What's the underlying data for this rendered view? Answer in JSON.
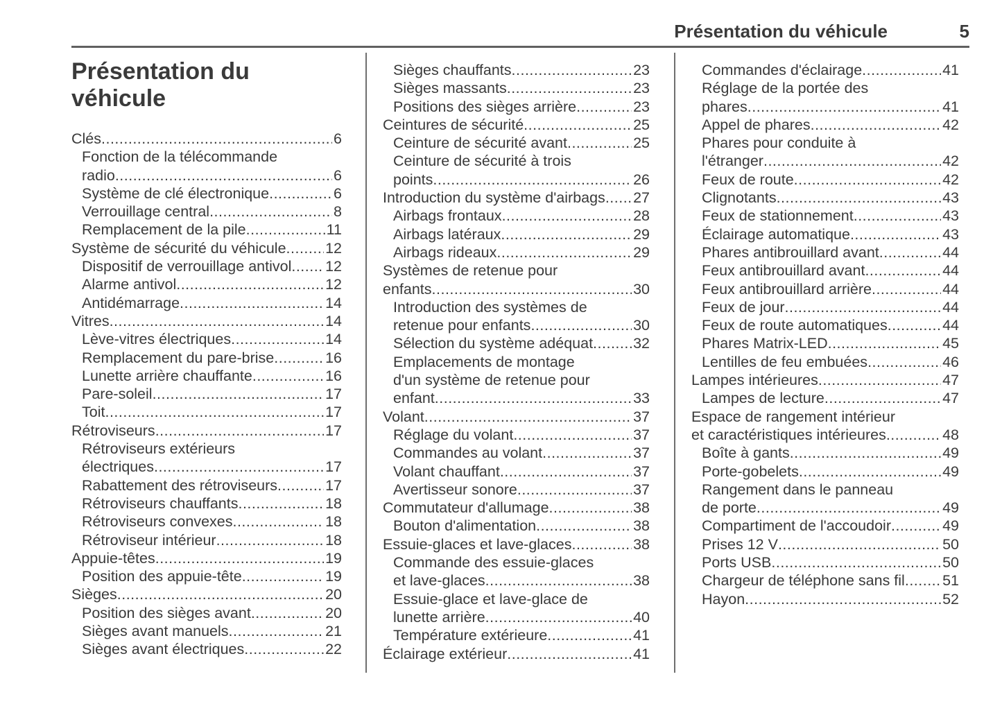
{
  "header": {
    "title": "Présentation du véhicule",
    "page_number": "5"
  },
  "document_title": "Présentation du véhicule",
  "colors": {
    "text": "#3a3a3a",
    "rule": "#606060"
  },
  "columns": [
    {
      "entries": [
        {
          "level": 1,
          "lines": [
            "Clés"
          ],
          "page": "6"
        },
        {
          "level": 2,
          "lines": [
            "Fonction de la télécommande",
            "radio"
          ],
          "page": "6"
        },
        {
          "level": 2,
          "lines": [
            "Système de clé électronique"
          ],
          "page": "6"
        },
        {
          "level": 2,
          "lines": [
            "Verrouillage central"
          ],
          "page": "8"
        },
        {
          "level": 2,
          "lines": [
            "Remplacement de la pile"
          ],
          "page": "11"
        },
        {
          "level": 1,
          "lines": [
            "Système de sécurité du véhicule"
          ],
          "page": "12"
        },
        {
          "level": 2,
          "lines": [
            "Dispositif de verrouillage antivol"
          ],
          "page": "12"
        },
        {
          "level": 2,
          "lines": [
            "Alarme antivol"
          ],
          "page": "12"
        },
        {
          "level": 2,
          "lines": [
            "Antidémarrage"
          ],
          "page": "14"
        },
        {
          "level": 1,
          "lines": [
            "Vitres"
          ],
          "page": "14"
        },
        {
          "level": 2,
          "lines": [
            "Lève-vitres électriques"
          ],
          "page": "14"
        },
        {
          "level": 2,
          "lines": [
            "Remplacement du pare-brise"
          ],
          "page": "16"
        },
        {
          "level": 2,
          "lines": [
            "Lunette arrière chauffante"
          ],
          "page": "16"
        },
        {
          "level": 2,
          "lines": [
            "Pare-soleil"
          ],
          "page": "17"
        },
        {
          "level": 2,
          "lines": [
            "Toit"
          ],
          "page": "17"
        },
        {
          "level": 1,
          "lines": [
            "Rétroviseurs"
          ],
          "page": "17"
        },
        {
          "level": 2,
          "lines": [
            "Rétroviseurs extérieurs",
            "électriques"
          ],
          "page": "17"
        },
        {
          "level": 2,
          "lines": [
            "Rabattement des rétroviseurs"
          ],
          "page": "17"
        },
        {
          "level": 2,
          "lines": [
            "Rétroviseurs chauffants"
          ],
          "page": "18"
        },
        {
          "level": 2,
          "lines": [
            "Rétroviseurs convexes"
          ],
          "page": "18"
        },
        {
          "level": 2,
          "lines": [
            "Rétroviseur intérieur"
          ],
          "page": "18"
        },
        {
          "level": 1,
          "lines": [
            "Appuie-têtes"
          ],
          "page": "19"
        },
        {
          "level": 2,
          "lines": [
            "Position des appuie-tête"
          ],
          "page": "19"
        },
        {
          "level": 1,
          "lines": [
            "Sièges"
          ],
          "page": "20"
        },
        {
          "level": 2,
          "lines": [
            "Position des sièges avant"
          ],
          "page": "20"
        },
        {
          "level": 2,
          "lines": [
            "Sièges avant manuels"
          ],
          "page": "21"
        },
        {
          "level": 2,
          "lines": [
            "Sièges avant électriques"
          ],
          "page": "22"
        }
      ]
    },
    {
      "entries": [
        {
          "level": 2,
          "lines": [
            "Sièges chauffants"
          ],
          "page": "23"
        },
        {
          "level": 2,
          "lines": [
            "Sièges massants"
          ],
          "page": "23"
        },
        {
          "level": 2,
          "lines": [
            "Positions des sièges arrière"
          ],
          "page": "23"
        },
        {
          "level": 1,
          "lines": [
            "Ceintures de sécurité"
          ],
          "page": "25"
        },
        {
          "level": 2,
          "lines": [
            "Ceinture de sécurité avant"
          ],
          "page": "25"
        },
        {
          "level": 2,
          "lines": [
            "Ceinture de sécurité à trois",
            "points"
          ],
          "page": "26"
        },
        {
          "level": 1,
          "lines": [
            "Introduction du système d'airbags"
          ],
          "page": "27"
        },
        {
          "level": 2,
          "lines": [
            "Airbags frontaux"
          ],
          "page": "28"
        },
        {
          "level": 2,
          "lines": [
            "Airbags latéraux"
          ],
          "page": "29"
        },
        {
          "level": 2,
          "lines": [
            "Airbags rideaux"
          ],
          "page": "29"
        },
        {
          "level": 1,
          "lines": [
            "Systèmes de retenue pour",
            "enfants"
          ],
          "page": "30"
        },
        {
          "level": 2,
          "lines": [
            "Introduction des systèmes de",
            "retenue pour enfants"
          ],
          "page": "30"
        },
        {
          "level": 2,
          "lines": [
            "Sélection du système adéquat"
          ],
          "page": "32"
        },
        {
          "level": 2,
          "lines": [
            "Emplacements de montage",
            "d'un système de retenue pour",
            "enfant"
          ],
          "page": "33"
        },
        {
          "level": 1,
          "lines": [
            "Volant"
          ],
          "page": "37"
        },
        {
          "level": 2,
          "lines": [
            "Réglage du volant"
          ],
          "page": "37"
        },
        {
          "level": 2,
          "lines": [
            "Commandes au volant"
          ],
          "page": "37"
        },
        {
          "level": 2,
          "lines": [
            "Volant chauffant"
          ],
          "page": "37"
        },
        {
          "level": 2,
          "lines": [
            "Avertisseur sonore"
          ],
          "page": "37"
        },
        {
          "level": 1,
          "lines": [
            "Commutateur d'allumage"
          ],
          "page": "38"
        },
        {
          "level": 2,
          "lines": [
            "Bouton d'alimentation"
          ],
          "page": "38"
        },
        {
          "level": 1,
          "lines": [
            "Essuie-glaces et lave-glaces"
          ],
          "page": "38"
        },
        {
          "level": 2,
          "lines": [
            "Commande des essuie-glaces",
            "et lave-glaces"
          ],
          "page": "38"
        },
        {
          "level": 2,
          "lines": [
            "Essuie-glace et lave-glace de",
            "lunette arrière"
          ],
          "page": "40"
        },
        {
          "level": 2,
          "lines": [
            "Température extérieure"
          ],
          "page": "41"
        },
        {
          "level": 1,
          "lines": [
            "Éclairage extérieur"
          ],
          "page": "41"
        }
      ]
    },
    {
      "entries": [
        {
          "level": 2,
          "lines": [
            "Commandes d'éclairage"
          ],
          "page": "41"
        },
        {
          "level": 2,
          "lines": [
            "Réglage de la portée des",
            "phares"
          ],
          "page": "41"
        },
        {
          "level": 2,
          "lines": [
            "Appel de phares"
          ],
          "page": "42"
        },
        {
          "level": 2,
          "lines": [
            "Phares pour conduite à",
            "l'étranger"
          ],
          "page": "42"
        },
        {
          "level": 2,
          "lines": [
            "Feux de route"
          ],
          "page": "42"
        },
        {
          "level": 2,
          "lines": [
            "Clignotants"
          ],
          "page": "43"
        },
        {
          "level": 2,
          "lines": [
            "Feux de stationnement"
          ],
          "page": "43"
        },
        {
          "level": 2,
          "lines": [
            "Éclairage automatique"
          ],
          "page": "43"
        },
        {
          "level": 2,
          "lines": [
            "Phares antibrouillard avant"
          ],
          "page": "44"
        },
        {
          "level": 2,
          "lines": [
            "Feux antibrouillard avant"
          ],
          "page": "44"
        },
        {
          "level": 2,
          "lines": [
            "Feux antibrouillard arrière"
          ],
          "page": "44"
        },
        {
          "level": 2,
          "lines": [
            "Feux de jour"
          ],
          "page": "44"
        },
        {
          "level": 2,
          "lines": [
            "Feux de route automatiques"
          ],
          "page": "44"
        },
        {
          "level": 2,
          "lines": [
            "Phares Matrix-LED"
          ],
          "page": "45"
        },
        {
          "level": 2,
          "lines": [
            "Lentilles de feu embuées"
          ],
          "page": "46"
        },
        {
          "level": 1,
          "lines": [
            "Lampes intérieures"
          ],
          "page": "47"
        },
        {
          "level": 2,
          "lines": [
            "Lampes de lecture"
          ],
          "page": "47"
        },
        {
          "level": 1,
          "lines": [
            "Espace de rangement intérieur",
            "et caractéristiques intérieures"
          ],
          "page": "48"
        },
        {
          "level": 2,
          "lines": [
            "Boîte à gants"
          ],
          "page": "49"
        },
        {
          "level": 2,
          "lines": [
            "Porte-gobelets"
          ],
          "page": "49"
        },
        {
          "level": 2,
          "lines": [
            "Rangement dans le panneau",
            "de porte"
          ],
          "page": "49"
        },
        {
          "level": 2,
          "lines": [
            "Compartiment de l'accoudoir"
          ],
          "page": "49"
        },
        {
          "level": 2,
          "lines": [
            "Prises 12 V"
          ],
          "page": "50"
        },
        {
          "level": 2,
          "lines": [
            "Ports USB"
          ],
          "page": "50"
        },
        {
          "level": 2,
          "lines": [
            "Chargeur de téléphone sans fil"
          ],
          "page": "51"
        },
        {
          "level": 2,
          "lines": [
            "Hayon"
          ],
          "page": "52"
        }
      ]
    }
  ]
}
